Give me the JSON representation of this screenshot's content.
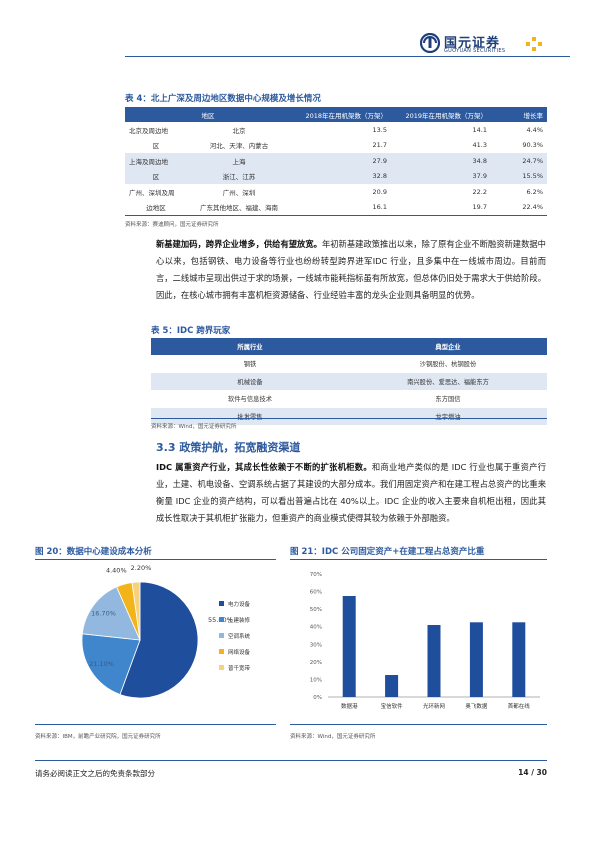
{
  "header": {
    "logo_cn": "国元证券",
    "logo_en": "GUOYUAN SECURITIES",
    "brand_color": "#1f3f7a"
  },
  "table4": {
    "title": "表 4：北上广深及周边地区数据中心规模及增长情况",
    "headers": [
      "地区",
      "",
      "2018年在用机架数（万架）",
      "2019年在用机架数（万架）",
      "增长率"
    ],
    "groups": [
      {
        "region_line1": "北京及周边地",
        "region_line2": "区",
        "rows": [
          {
            "area": "北京",
            "y2018": "13.5",
            "y2019": "14.1",
            "growth": "4.4%"
          },
          {
            "area": "河北、天津、内蒙古",
            "y2018": "21.7",
            "y2019": "41.3",
            "growth": "90.3%"
          }
        ]
      },
      {
        "region_line1": "上海及周边地",
        "region_line2": "区",
        "rows": [
          {
            "area": "上海",
            "y2018": "27.9",
            "y2019": "34.8",
            "growth": "24.7%"
          },
          {
            "area": "浙江、江苏",
            "y2018": "32.8",
            "y2019": "37.9",
            "growth": "15.5%"
          }
        ]
      },
      {
        "region_line1": "广州、深圳及周",
        "region_line2": "边地区",
        "rows": [
          {
            "area": "广州、深圳",
            "y2018": "20.9",
            "y2019": "22.2",
            "growth": "6.2%"
          },
          {
            "area": "广东其他地区、福建、海南",
            "y2018": "16.1",
            "y2019": "19.7",
            "growth": "22.4%"
          }
        ]
      }
    ],
    "source": "资料来源：赛迪顾问，国元证券研究所"
  },
  "para1": {
    "lead": "新基建加码，跨界企业增多，供给有望放宽。",
    "text": "年初新基建政策推出以来，除了原有企业不断融资新建数据中心以来，包括钢铁、电力设备等行业也纷纷转型跨界进军IDC 行业，且多集中在一线城市周边。目前而言，二线城市呈现出供过于求的场景，一线城市能耗指标虽有所放宽，但总体仍旧处于需求大于供给阶段。因此，在核心城市拥有丰富机柜资源储备、行业经验丰富的龙头企业则具备明显的优势。"
  },
  "table5": {
    "title": "表 5：IDC 跨界玩家",
    "headers": [
      "所属行业",
      "典型企业"
    ],
    "rows": [
      {
        "industry": "钢铁",
        "company": "沙钢股份、杭钢股份"
      },
      {
        "industry": "机械设备",
        "company": "南兴股份、爱思达、福能东方"
      },
      {
        "industry": "软件与信息技术",
        "company": "东方国信"
      },
      {
        "industry": "批发零售",
        "company": "龙宇燃油"
      }
    ],
    "source": "资料来源：Wind，国元证券研究所"
  },
  "section": {
    "heading": "3.3 政策护航，拓宽融资渠道"
  },
  "para2": {
    "lead": "IDC 属重资产行业，其成长性依赖于不断的扩张机柜数。",
    "text": "和商业地产类似的是 IDC 行业也属于重资产行业，土建、机电设备、空调系统占据了其建设的大部分成本。我们用固定资产和在建工程占总资产的比重来衡量 IDC 企业的资产结构，可以看出普遍占比在 40%以上。IDC 企业的收入主要来自机柜出租，因此其成长性取决于其机柜扩张能力，但重资产的商业模式使得其较为依赖于外部融资。"
  },
  "figure20": {
    "title": "图 20：数据中心建设成本分析",
    "source": "资料来源：IBM，前瞻产业研究院，国元证券研究所",
    "chart_data": {
      "type": "pie",
      "title": "",
      "labels": [
        "电力设备",
        "土建装修",
        "空调系统",
        "网络设备",
        "普千宽带"
      ],
      "values": [
        55.6,
        21.1,
        16.7,
        4.4,
        2.2
      ],
      "value_labels": [
        "55.60%",
        "21.10%",
        "16.70%",
        "4.40%",
        "2.20%"
      ],
      "colors": [
        "#1f4e9c",
        "#3f86cc",
        "#93b8e0",
        "#f2b41a",
        "#f6d37a"
      ],
      "legend": "right"
    }
  },
  "figure21": {
    "title": "图 21：IDC 公司固定资产+在建工程占总资产比重",
    "source": "资料来源：Wind，国元证券研究所",
    "chart_data": {
      "type": "bar",
      "title": "",
      "categories": [
        "数据港",
        "宝信软件",
        "光环新网",
        "奥飞数据",
        "首都在线"
      ],
      "values": [
        57.5,
        12.5,
        41,
        42.5,
        42.5
      ],
      "ylim": [
        0,
        70
      ],
      "yticks": [
        "0%",
        "10%",
        "20%",
        "30%",
        "40%",
        "50%",
        "60%",
        "70%"
      ],
      "color": "#1f4e9c",
      "grid": false,
      "xlabel": "",
      "ylabel": ""
    }
  },
  "footer": {
    "disclaimer": "请务必阅读正文之后的免责条款部分",
    "page": "14 / 30"
  }
}
